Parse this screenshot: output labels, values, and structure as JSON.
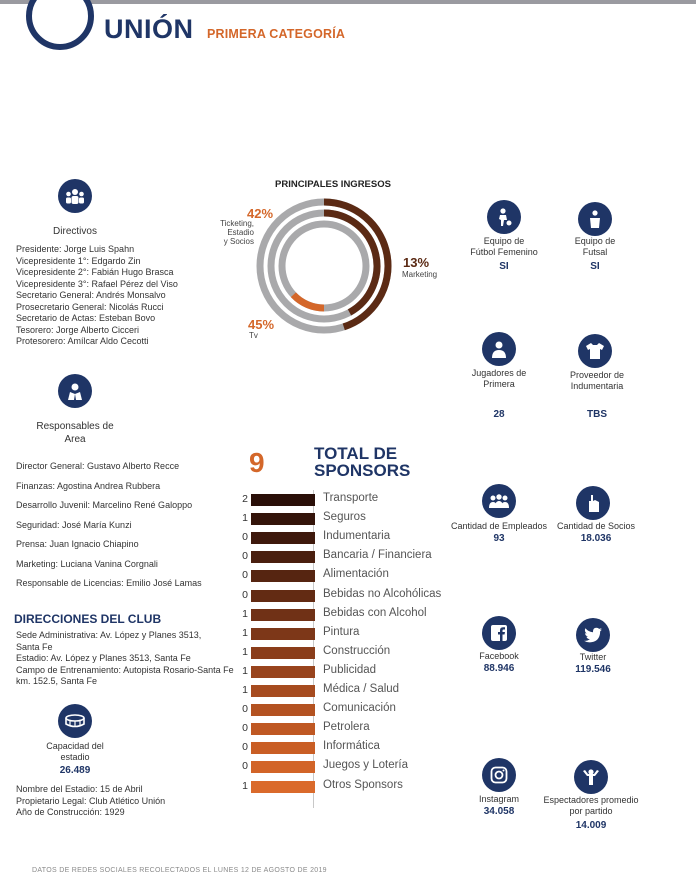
{
  "header": {
    "club": "UNIÓN",
    "category": "PRIMERA CATEGORÍA"
  },
  "ingresos": {
    "title": "PRINCIPALES INGRESOS",
    "items": [
      {
        "pct": "42%",
        "label": "Ticketing, Estadio\ny Socios",
        "value": 42
      },
      {
        "pct": "13%",
        "label": "Marketing",
        "value": 13
      },
      {
        "pct": "45%",
        "label": "Tv",
        "value": 45
      }
    ],
    "colors": {
      "dark": "#5b2a14",
      "orange": "#d4672a",
      "gray": "#a9a9ab"
    }
  },
  "directivos": {
    "title": "Directivos",
    "lines": [
      "Presidente: Jorge Luis Spahn",
      "Vicepresidente 1°: Edgardo Zin",
      "Vicepresidente 2°: Fabián Hugo Brasca",
      "Vicepresidente 3°: Rafael Pérez del Viso",
      "Secretario General: Andrés Monsalvo",
      "Prosecretario General: Nicolás Rucci",
      "Secretario de Actas: Esteban Bovo",
      "Tesorero: Jorge Alberto Cicceri",
      "Protesorero: Amílcar Aldo Cecotti"
    ]
  },
  "responsables": {
    "title": "Responsables de\nArea",
    "lines": [
      "Director General: Gustavo Alberto Recce",
      "Finanzas: Agostina Andrea Rubbera",
      "Desarrollo Juvenil: Marcelino René Galoppo",
      "Seguridad: José María Kunzi",
      "Prensa: Juan Ignacio Chiapino",
      "Marketing: Luciana Vanina Corgnali",
      "Responsable de Licencias: Emilio José Lamas"
    ]
  },
  "direcciones": {
    "title": "DIRECCIONES DEL CLUB",
    "lines": [
      "Sede Administrativa: Av. López y Planes 3513,",
      "Santa Fe",
      "Estadio: Av. López y Planes 3513, Santa Fe",
      "Campo de Entrenamiento: Autopista Rosario-Santa Fe",
      "km. 152.5, Santa Fe"
    ]
  },
  "estadio": {
    "label": "Capacidad del\nestadio",
    "value": "26.489",
    "lines": [
      "Nombre del Estadio: 15 de Abril",
      "Propietario Legal: Club Atlético Unión",
      "Año de Construcción: 1929"
    ]
  },
  "sponsors": {
    "total": "9",
    "title": "TOTAL DE\nSPONSORS",
    "rows": [
      {
        "count": "2",
        "name": "Transporte",
        "color": "#2a0f08"
      },
      {
        "count": "1",
        "name": "Seguros",
        "color": "#34140a"
      },
      {
        "count": "0",
        "name": "Indumentaria",
        "color": "#3e190c"
      },
      {
        "count": "0",
        "name": "Bancaria / Financiera",
        "color": "#4a1f0f"
      },
      {
        "count": "0",
        "name": "Alimentación",
        "color": "#562511"
      },
      {
        "count": "0",
        "name": "Bebidas no Alcohólicas",
        "color": "#632b13"
      },
      {
        "count": "1",
        "name": "Bebidas con Alcohol",
        "color": "#703116"
      },
      {
        "count": "1",
        "name": "Pintura",
        "color": "#7d3718"
      },
      {
        "count": "1",
        "name": "Construcción",
        "color": "#8a3d1a"
      },
      {
        "count": "1",
        "name": "Publicidad",
        "color": "#98441d"
      },
      {
        "count": "1",
        "name": "Médica / Salud",
        "color": "#a64b1f"
      },
      {
        "count": "0",
        "name": "Comunicación",
        "color": "#b35221"
      },
      {
        "count": "0",
        "name": "Petrolera",
        "color": "#bf5823"
      },
      {
        "count": "0",
        "name": "Informática",
        "color": "#c95e25"
      },
      {
        "count": "0",
        "name": "Juegos y Lotería",
        "color": "#d26428"
      },
      {
        "count": "1",
        "name": "Otros Sponsors",
        "color": "#da6a2b"
      }
    ]
  },
  "stats": {
    "femenino": {
      "label": "Equipo de\nFútbol Femenino",
      "value": "SI",
      "icon": "soccer-player-icon"
    },
    "futsal": {
      "label": "Equipo de\nFutsal",
      "value": "SI",
      "icon": "futsal-player-icon"
    },
    "jugadores": {
      "label": "Jugadores de\nPrimera",
      "value": "28",
      "icon": "player-icon"
    },
    "proveedor": {
      "label": "Proveedor de\nIndumentaria",
      "value": "TBS",
      "icon": "shirt-icon"
    },
    "empleados": {
      "label": "Cantidad de Empleados",
      "value": "93",
      "icon": "employees-icon"
    },
    "socios": {
      "label": "Cantidad de Socios",
      "value": "18.036",
      "icon": "fan-hand-icon"
    },
    "facebook": {
      "label": "Facebook",
      "value": "88.946",
      "icon": "facebook-icon"
    },
    "twitter": {
      "label": "Twitter",
      "value": "119.546",
      "icon": "twitter-icon"
    },
    "instagram": {
      "label": "Instagram",
      "value": "34.058",
      "icon": "instagram-icon"
    },
    "espectadores": {
      "label": "Espectadores promedio\npor partido",
      "value": "14.009",
      "icon": "spectators-icon"
    }
  },
  "footer": "DATOS DE REDES SOCIALES RECOLECTADOS EL LUNES 12 DE AGOSTO DE 2019"
}
